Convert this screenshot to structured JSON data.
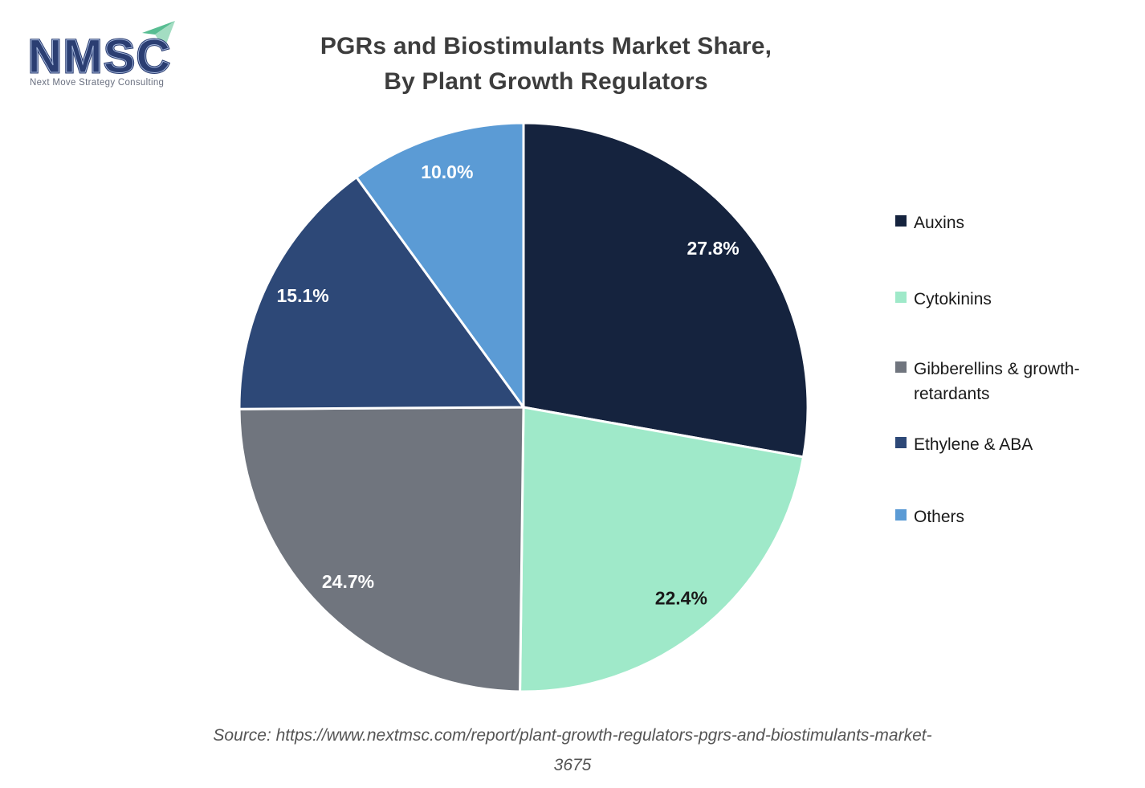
{
  "logo": {
    "text": "NMSC",
    "subtitle": "Next Move Strategy Consulting",
    "colors": {
      "letters": "#2b3e72",
      "letter_inline": "#a9bbdf",
      "arrow_dark": "#58bd92",
      "arrow_light": "#a3ddc2",
      "subtitle_text": "#6a7080"
    }
  },
  "title": {
    "line1": "PGRs and Biostimulants Market Share,",
    "line2": "By Plant Growth Regulators"
  },
  "chart_data": {
    "type": "pie",
    "title": "PGRs and Biostimulants Market Share, By Plant Growth Regulators",
    "start_angle_deg": 0,
    "direction": "clockwise",
    "labels_style": "percent-inside",
    "legend_position": "right",
    "slices": [
      {
        "label": "Auxins",
        "value": 27.8,
        "display": "27.8%",
        "color": "#15233e",
        "label_color": "#ffffff"
      },
      {
        "label": "Cytokinins",
        "value": 22.4,
        "display": "22.4%",
        "color": "#9fe9c9",
        "label_color": "#1a1a1a"
      },
      {
        "label": "Gibberellins & growth-retardants",
        "value": 24.7,
        "display": "24.7%",
        "color": "#70757e",
        "label_color": "#ffffff"
      },
      {
        "label": "Ethylene & ABA",
        "value": 15.1,
        "display": "15.1%",
        "color": "#2d4877",
        "label_color": "#ffffff"
      },
      {
        "label": "Others",
        "value": 10.0,
        "display": "10.0%",
        "color": "#5b9bd5",
        "label_color": "#ffffff"
      }
    ]
  },
  "legend": {
    "items": [
      {
        "label": "Auxins",
        "color": "#15233e"
      },
      {
        "label": "Cytokinins",
        "color": "#9fe9c9"
      },
      {
        "label": "Gibberellins & growth-retardants",
        "color": "#70757e"
      },
      {
        "label": "Ethylene & ABA",
        "color": "#2d4877"
      },
      {
        "label": "Others",
        "color": "#5b9bd5"
      }
    ]
  },
  "source": {
    "line1": "Source: https://www.nextmsc.com/report/plant-growth-regulators-pgrs-and-biostimulants-market-",
    "line2": "3675"
  }
}
